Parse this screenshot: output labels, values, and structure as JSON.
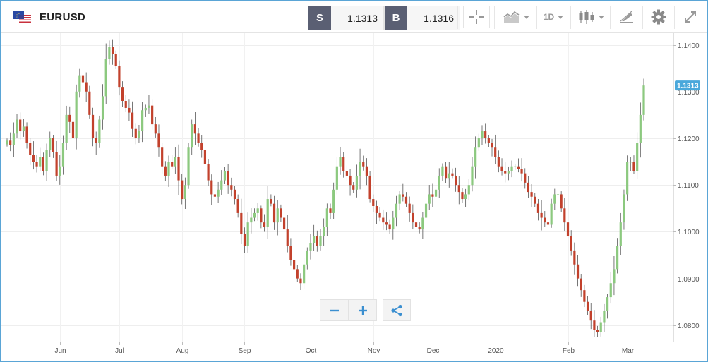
{
  "header": {
    "symbol": "EURUSD",
    "sell_label": "S",
    "sell_price": "1.1313",
    "buy_label": "B",
    "buy_price": "1.1316",
    "timeframe": "1D"
  },
  "icons": [
    "flag-eu-us-icon",
    "crosshair-icon",
    "chart-type-icon",
    "candlestick-icon",
    "draw-tools-icon",
    "gear-icon",
    "expand-icon",
    "zoom-out-icon",
    "zoom-in-icon",
    "share-icon"
  ],
  "colors": {
    "up": "#8cc97f",
    "down": "#c2412c",
    "accent": "#4aa8db",
    "frame": "#5aa5d6"
  },
  "chart_data": {
    "type": "candlestick",
    "symbol": "EURUSD",
    "timeframe": "1D",
    "ylim": [
      1.0765,
      1.1425
    ],
    "yticks": [
      "1.1400",
      "1.1300",
      "1.1200",
      "1.1100",
      "1.1000",
      "1.0900",
      "1.0800"
    ],
    "xticks": [
      {
        "label": "Jun",
        "index": 16
      },
      {
        "label": "Jul",
        "index": 34
      },
      {
        "label": "Aug",
        "index": 53
      },
      {
        "label": "Sep",
        "index": 72
      },
      {
        "label": "Oct",
        "index": 92
      },
      {
        "label": "Nov",
        "index": 111
      },
      {
        "label": "Dec",
        "index": 129
      },
      {
        "label": "2020",
        "index": 148
      },
      {
        "label": "Feb",
        "index": 170
      },
      {
        "label": "Mar",
        "index": 188
      }
    ],
    "last_price": "1.1313",
    "last_value": 1.1313,
    "crosshair_index": 148,
    "closes": [
      1.1195,
      1.1185,
      1.121,
      1.124,
      1.1215,
      1.1225,
      1.119,
      1.1165,
      1.115,
      1.114,
      1.116,
      1.113,
      1.1175,
      1.12,
      1.117,
      1.112,
      1.114,
      1.119,
      1.125,
      1.1235,
      1.12,
      1.13,
      1.1335,
      1.132,
      1.13,
      1.125,
      1.12,
      1.119,
      1.124,
      1.129,
      1.137,
      1.1395,
      1.138,
      1.1355,
      1.131,
      1.128,
      1.1265,
      1.1255,
      1.122,
      1.12,
      1.1215,
      1.126,
      1.1265,
      1.127,
      1.123,
      1.121,
      1.118,
      1.114,
      1.112,
      1.115,
      1.114,
      1.116,
      1.111,
      1.107,
      1.11,
      1.118,
      1.123,
      1.121,
      1.119,
      1.1175,
      1.1145,
      1.111,
      1.108,
      1.1075,
      1.109,
      1.111,
      1.113,
      1.11,
      1.109,
      1.107,
      1.104,
      1.0995,
      1.097,
      1.102,
      1.103,
      1.104,
      1.105,
      1.102,
      1.101,
      1.107,
      1.106,
      1.102,
      1.105,
      1.103,
      1.1005,
      1.097,
      1.094,
      1.092,
      1.09,
      1.089,
      1.093,
      1.096,
      1.0975,
      1.099,
      1.097,
      1.099,
      1.101,
      1.105,
      1.104,
      1.109,
      1.114,
      1.116,
      1.113,
      1.112,
      1.11,
      1.109,
      1.112,
      1.115,
      1.114,
      1.112,
      1.107,
      1.1055,
      1.104,
      1.103,
      1.102,
      1.1015,
      1.1005,
      1.103,
      1.106,
      1.108,
      1.1075,
      1.106,
      1.104,
      1.102,
      1.101,
      1.1005,
      1.103,
      1.106,
      1.108,
      1.1075,
      1.109,
      1.112,
      1.114,
      1.1115,
      1.1125,
      1.112,
      1.11,
      1.1085,
      1.107,
      1.108,
      1.11,
      1.114,
      1.118,
      1.12,
      1.1215,
      1.12,
      1.119,
      1.118,
      1.116,
      1.114,
      1.113,
      1.1125,
      1.113,
      1.114,
      1.114,
      1.1135,
      1.1125,
      1.1105,
      1.1085,
      1.1075,
      1.106,
      1.104,
      1.103,
      1.102,
      1.1015,
      1.106,
      1.108,
      1.108,
      1.105,
      1.102,
      1.099,
      1.096,
      1.093,
      1.09,
      1.0875,
      1.085,
      1.083,
      1.081,
      1.079,
      1.0785,
      1.0805,
      1.083,
      1.086,
      1.089,
      1.092,
      1.097,
      1.102,
      1.108,
      1.115,
      1.115,
      1.113,
      1.119,
      1.125,
      1.1313
    ]
  }
}
